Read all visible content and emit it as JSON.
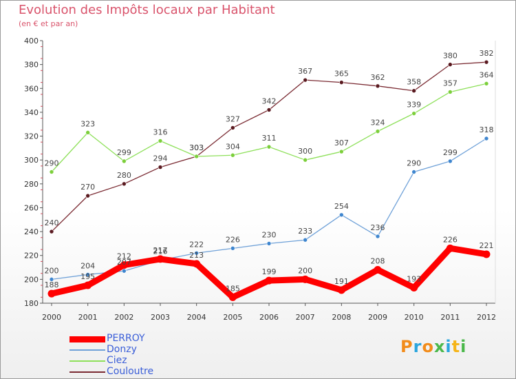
{
  "title": "Evolution des Impôts locaux par Habitant",
  "subtitle": "(en € et par an)",
  "brand": "Proxiti",
  "chart_data": {
    "type": "line",
    "x": [
      "2000",
      "2001",
      "2002",
      "2003",
      "2004",
      "2005",
      "2006",
      "2007",
      "2008",
      "2009",
      "2010",
      "2011",
      "2012"
    ],
    "ylim": [
      180,
      400
    ],
    "yticks": [
      180,
      200,
      220,
      240,
      260,
      280,
      300,
      320,
      340,
      360,
      380,
      400
    ],
    "grid": false,
    "legend_position": "bottom-left",
    "series": [
      {
        "name": "PERROY",
        "color": "#ff0000",
        "values": [
          188,
          195,
          212,
          217,
          213,
          185,
          199,
          200,
          191,
          208,
          193,
          226,
          221
        ]
      },
      {
        "name": "Donzy",
        "color": "#6fa1d8",
        "values": [
          200,
          204,
          207,
          216,
          222,
          226,
          230,
          233,
          254,
          236,
          290,
          299,
          318
        ]
      },
      {
        "name": "Ciez",
        "color": "#8ee05a",
        "values": [
          290,
          323,
          299,
          316,
          303,
          304,
          311,
          300,
          307,
          324,
          339,
          357,
          364
        ]
      },
      {
        "name": "Couloutre",
        "color": "#7a2a32",
        "values": [
          240,
          270,
          280,
          294,
          303,
          327,
          342,
          367,
          365,
          362,
          358,
          380,
          382
        ]
      }
    ]
  }
}
